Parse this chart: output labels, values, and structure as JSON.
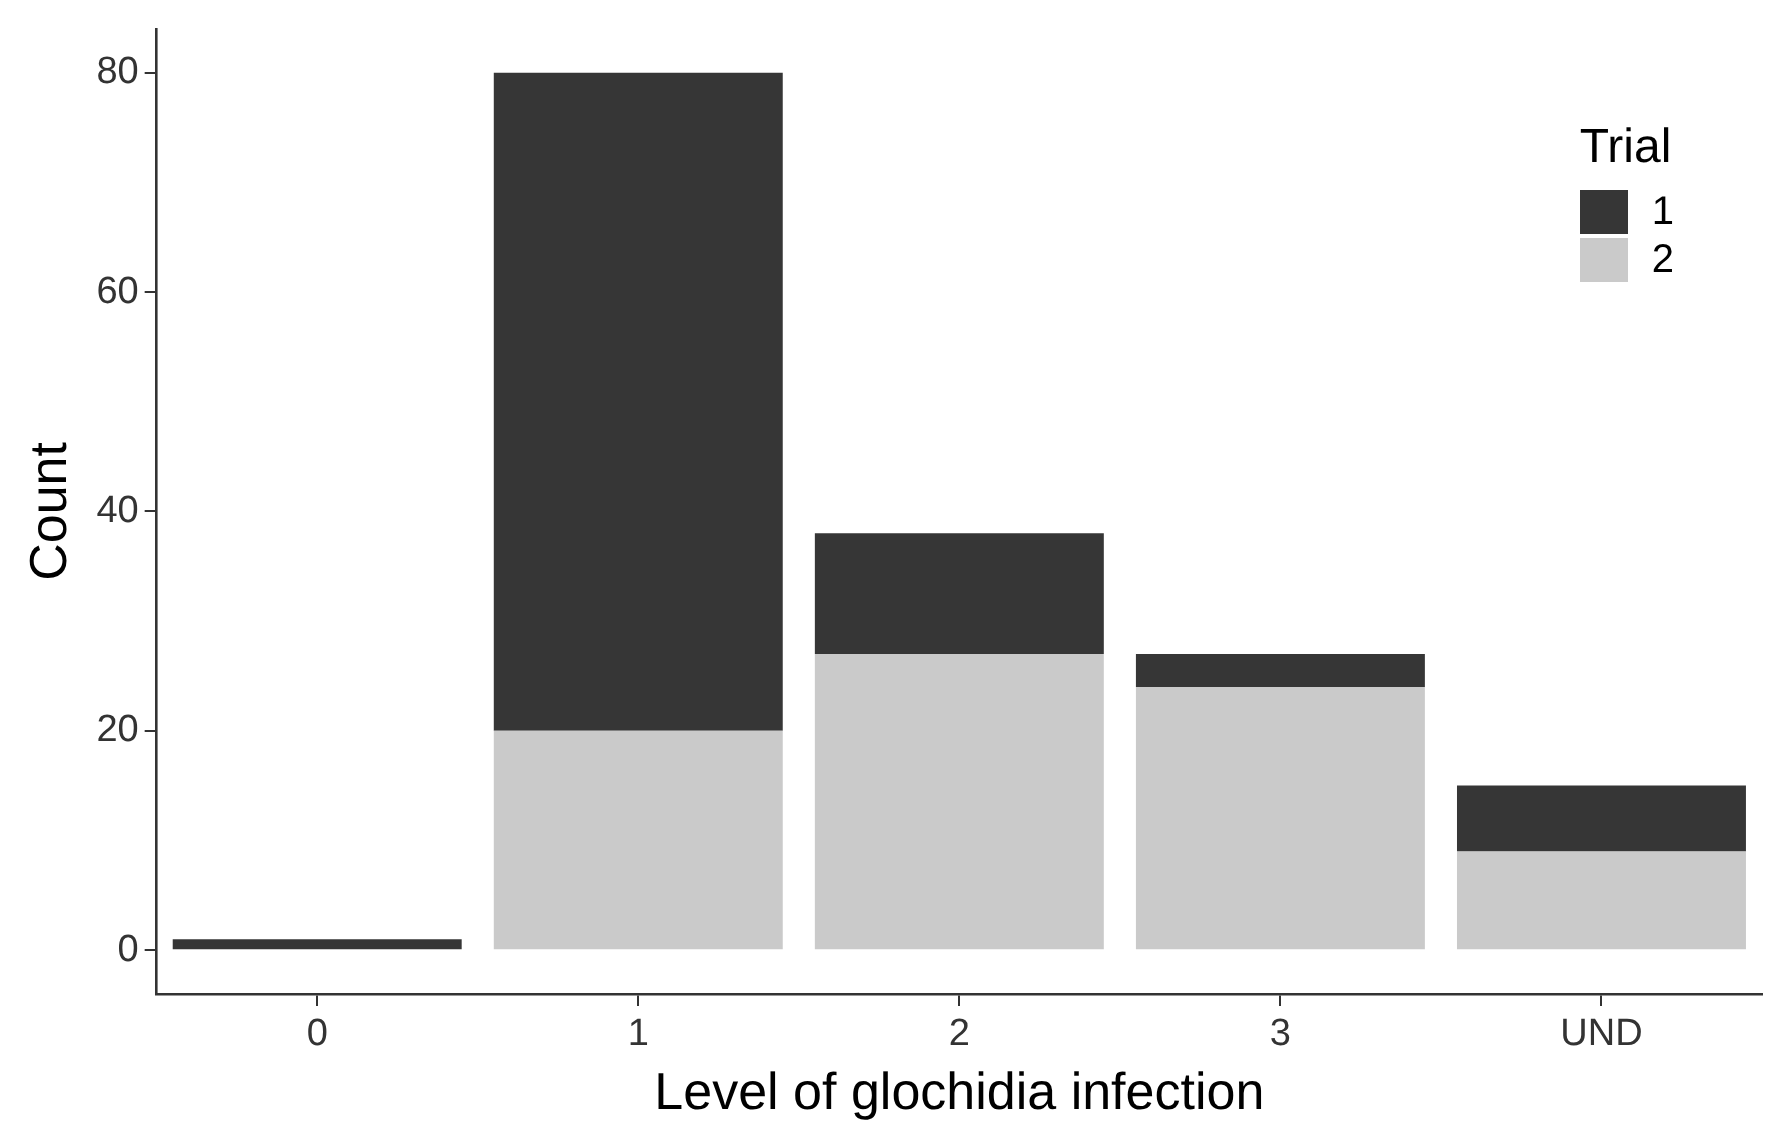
{
  "chart_data": {
    "type": "bar",
    "xlabel": "Level of glochidia infection",
    "ylabel": "Count",
    "legend_title": "Trial",
    "categories": [
      "0",
      "1",
      "2",
      "3",
      "UND"
    ],
    "series": [
      {
        "name": "2",
        "color": "#cacaca",
        "values": [
          0,
          20,
          27,
          24,
          9
        ]
      },
      {
        "name": "1",
        "color": "#363636",
        "values": [
          1,
          60,
          11,
          3,
          6
        ]
      }
    ],
    "stacked": true,
    "ylim": [
      -4,
      84
    ],
    "yticks": [
      0,
      20,
      40,
      60,
      80
    ],
    "grid": false,
    "legend": "top right"
  }
}
